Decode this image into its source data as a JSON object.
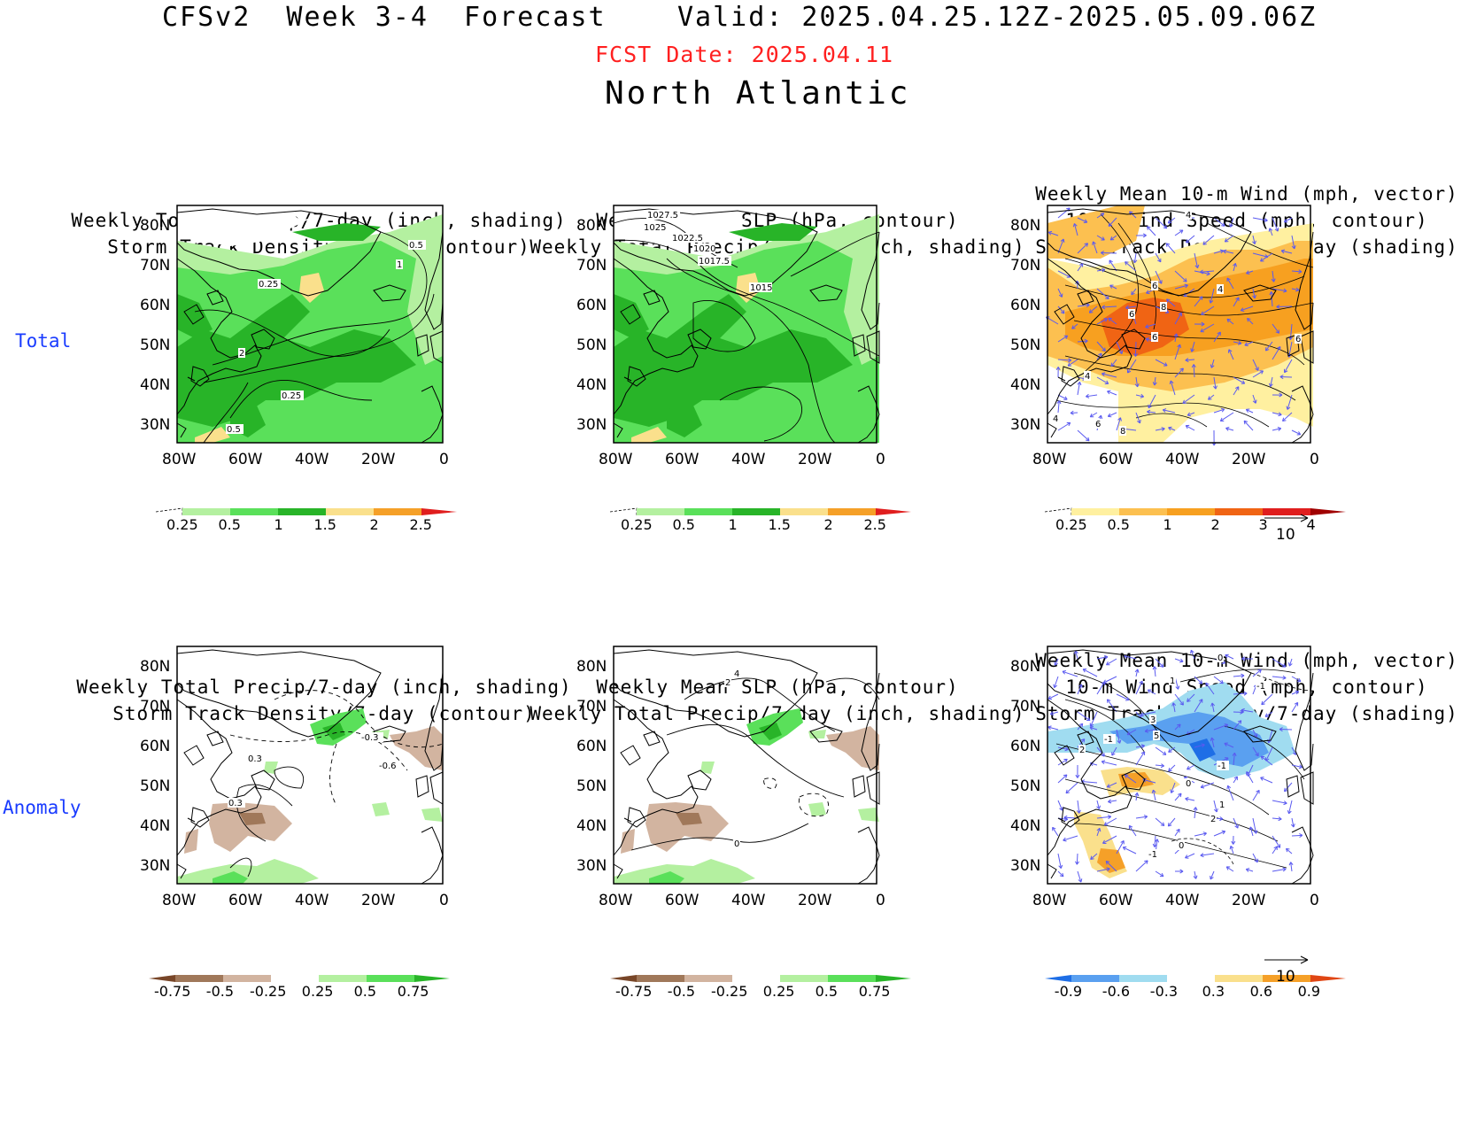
{
  "header": {
    "title": "CFSv2  Week 3-4  Forecast",
    "valid": "Valid: 2025.04.25.12Z-2025.05.09.06Z",
    "fcst_date": "FCST Date: 2025.04.11",
    "region": "North Atlantic",
    "title_color": "#000000",
    "fcst_color": "#ff2020"
  },
  "rows": [
    {
      "label": "Total"
    },
    {
      "label": "Anomaly"
    }
  ],
  "panel_titles": {
    "col1": [
      "Weekly Total Precip/7-day (inch, shading)",
      "Storm Track Density/7-day (contour)"
    ],
    "col2": [
      "Weekly Mean SLP (hPa, contour)",
      "Weekly Total Precip/7-day (inch, shading)"
    ],
    "col3": [
      "Weekly Mean 10-m Wind (mph, vector)",
      "10-m Wind Speed (mph, contour)",
      "Storm Track Density/7-day (shading)"
    ]
  },
  "axes": {
    "lat_labels": [
      "80N",
      "70N",
      "60N",
      "50N",
      "40N",
      "30N"
    ],
    "lon_labels": [
      "80W",
      "60W",
      "40W",
      "20W",
      "0"
    ]
  },
  "colorbars": {
    "precip_total": {
      "ticks": [
        "0.25",
        "0.5",
        "1",
        "1.5",
        "2",
        "2.5"
      ],
      "colors": [
        "#b4f0a0",
        "#5ae05a",
        "#28b428",
        "#fae08c",
        "#f5a028",
        "#e01e1e"
      ]
    },
    "storm_total": {
      "ticks": [
        "0.25",
        "0.5",
        "1",
        "2",
        "3",
        "4"
      ],
      "colors": [
        "#fff0a0",
        "#fcc050",
        "#f7a020",
        "#f06414",
        "#e01e1e",
        "#a00000"
      ]
    },
    "precip_anom": {
      "ticks": [
        "-0.75",
        "-0.5",
        "-0.25",
        "0.25",
        "0.5",
        "0.75"
      ],
      "colors": [
        "#784628",
        "#a0785a",
        "#d2b4a0",
        "#ffffff",
        "#b4f0a0",
        "#5ae05a",
        "#28b428"
      ]
    },
    "storm_anom": {
      "ticks": [
        "-0.9",
        "-0.6",
        "-0.3",
        "0.3",
        "0.6",
        "0.9"
      ],
      "colors": [
        "#1e6ee6",
        "#5aa0f0",
        "#a0dcf0",
        "#ffffff",
        "#fae08c",
        "#f5a028",
        "#e04614"
      ]
    }
  },
  "vector_ref": {
    "label": "10"
  },
  "contour_labels": {
    "p1": [
      "0.5",
      "1",
      "0.25",
      "2",
      "0.25",
      "0.5"
    ],
    "p2": [
      "1027.5",
      "1025",
      "1022.5",
      "1020",
      "1017.5",
      "1015"
    ],
    "p3": [
      "4",
      "6",
      "4",
      "8",
      "6",
      "6",
      "6",
      "4",
      "4",
      "6",
      "8"
    ],
    "p4": [
      "-0.3",
      "-0.6",
      "0.3",
      "0.3"
    ],
    "p5": [
      "4",
      "2",
      "0"
    ],
    "p6": [
      "0",
      "1",
      "-1",
      "3",
      "-1",
      "2",
      "5",
      "0",
      "-1",
      "1",
      "2",
      "0",
      "-1"
    ]
  }
}
